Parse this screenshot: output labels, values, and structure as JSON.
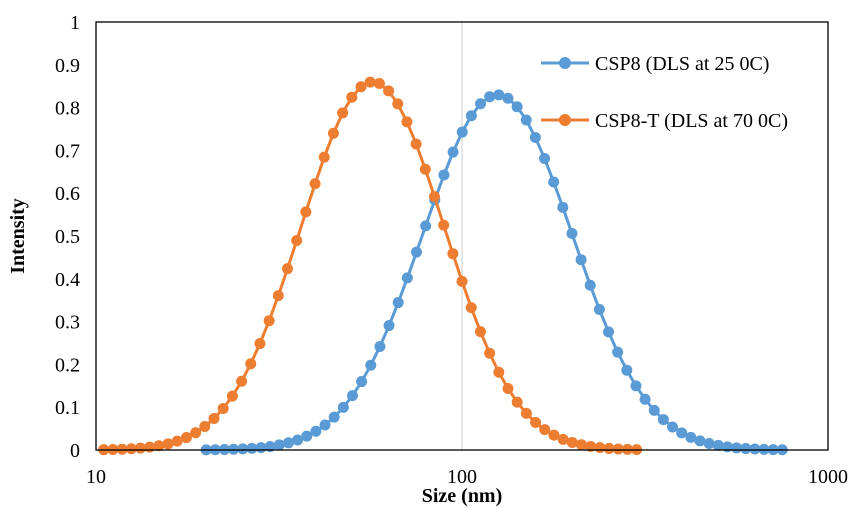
{
  "chart_data": {
    "type": "scatter",
    "title": "",
    "xlabel": "Size (nm)",
    "ylabel": "Intensity",
    "x_scale": "log",
    "xlim": [
      10,
      1000
    ],
    "ylim": [
      0,
      1
    ],
    "x_ticks": [
      "10",
      "100",
      "1000"
    ],
    "y_ticks": [
      "0",
      "0.1",
      "0.2",
      "0.3",
      "0.4",
      "0.5",
      "0.6",
      "0.7",
      "0.8",
      "0.9",
      "1"
    ],
    "grid": "vertical major gridline at 100",
    "legend_position": "top-right",
    "series": [
      {
        "name": "CSP8 (DLS at 25 0C)",
        "color": "#5B9BD5",
        "marker": "circle",
        "x_min": 20,
        "x_max": 750,
        "points_per_decade": 40,
        "peak_x": 125,
        "peak_y": 0.83,
        "log_width": 0.2045
      },
      {
        "name": "CSP8-T (DLS at 70 0C)",
        "color": "#ED7D31",
        "marker": "circle",
        "x_min": 10.5,
        "x_max": 300,
        "points_per_decade": 40,
        "peak_x": 57,
        "peak_y": 0.86,
        "log_width": 0.1955
      }
    ]
  }
}
